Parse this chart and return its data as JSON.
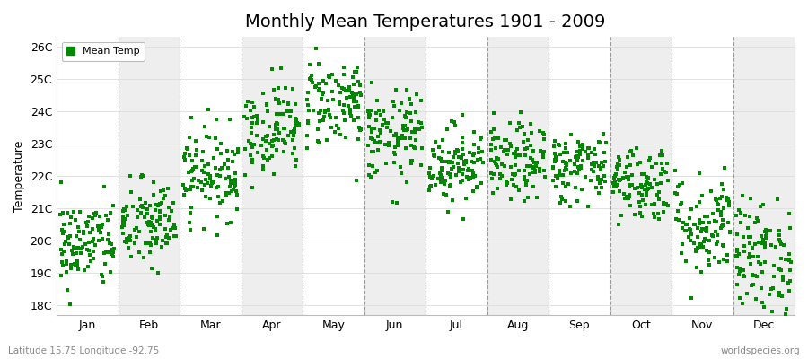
{
  "title": "Monthly Mean Temperatures 1901 - 2009",
  "ylabel": "Temperature",
  "xlabel_labels": [
    "Jan",
    "Feb",
    "Mar",
    "Apr",
    "May",
    "Jun",
    "Jul",
    "Aug",
    "Sep",
    "Oct",
    "Nov",
    "Dec"
  ],
  "ytick_labels": [
    "18C",
    "19C",
    "20C",
    "21C",
    "22C",
    "23C",
    "24C",
    "25C",
    "26C"
  ],
  "ytick_values": [
    18,
    19,
    20,
    21,
    22,
    23,
    24,
    25,
    26
  ],
  "ylim": [
    17.7,
    26.3
  ],
  "legend_label": "Mean Temp",
  "dot_color": "#008800",
  "bg_color_white": "#ffffff",
  "bg_color_gray": "#eeeeee",
  "footer_left": "Latitude 15.75 Longitude -92.75",
  "footer_right": "worldspecies.org",
  "monthly_means": [
    19.9,
    20.5,
    22.1,
    23.5,
    24.3,
    23.2,
    22.4,
    22.4,
    22.3,
    21.8,
    20.5,
    19.5
  ],
  "monthly_stds": [
    0.7,
    0.7,
    0.7,
    0.7,
    0.7,
    0.7,
    0.6,
    0.6,
    0.55,
    0.6,
    0.8,
    0.9
  ],
  "n_years": 109,
  "seed": 42,
  "dashed_line_color": "#999999",
  "title_fontsize": 14,
  "axis_label_fontsize": 9,
  "tick_label_fontsize": 9
}
